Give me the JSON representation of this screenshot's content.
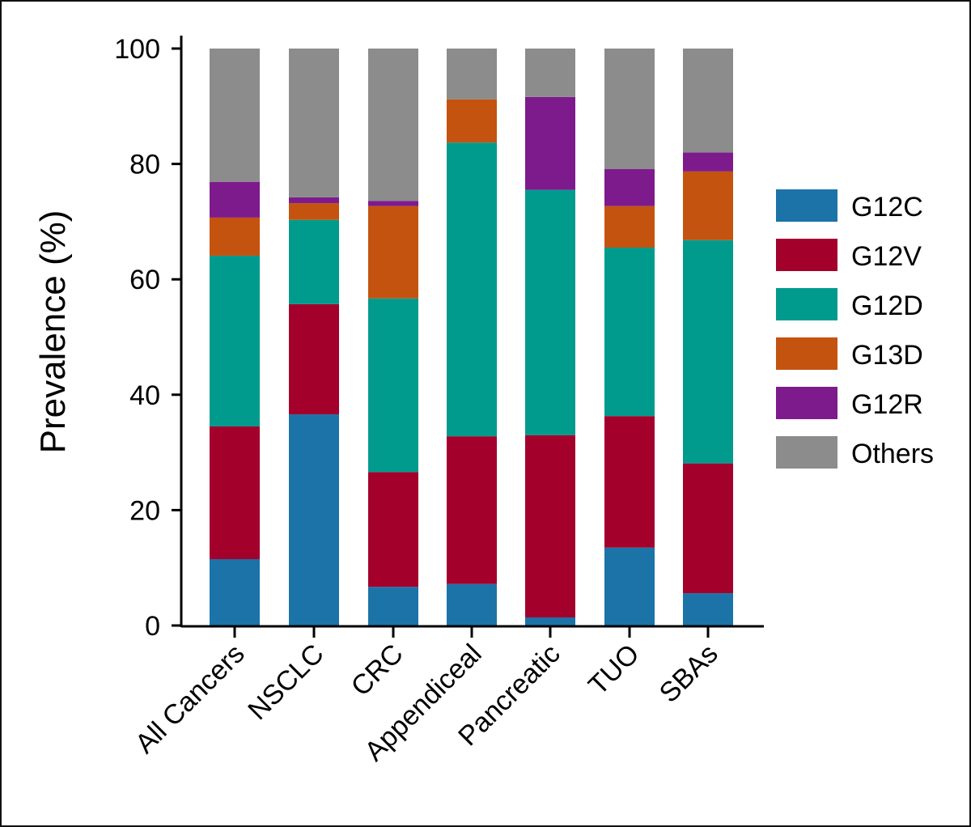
{
  "chart_data": {
    "type": "bar",
    "stacked": true,
    "title": "",
    "xlabel": "",
    "ylabel": "Prevalence (%)",
    "ylim": [
      0,
      100
    ],
    "yticks": [
      0,
      20,
      40,
      60,
      80,
      100
    ],
    "grid": false,
    "legend_position": "right",
    "categories": [
      "All Cancers",
      "NSCLC",
      "CRC",
      "Appendiceal",
      "Pancreatic",
      "TUO",
      "SBAs"
    ],
    "series": [
      {
        "name": "G12C",
        "color": "#1b73a8",
        "values": [
          11.5,
          36.6,
          6.7,
          7.2,
          1.4,
          13.5,
          5.6
        ]
      },
      {
        "name": "G12V",
        "color": "#a3002c",
        "values": [
          23.0,
          19.1,
          19.9,
          25.6,
          31.6,
          22.8,
          22.5
        ]
      },
      {
        "name": "G12D",
        "color": "#009b8d",
        "values": [
          29.6,
          14.6,
          30.1,
          50.9,
          42.5,
          29.2,
          38.7
        ]
      },
      {
        "name": "G13D",
        "color": "#c4530f",
        "values": [
          6.6,
          2.9,
          16.0,
          7.5,
          0.0,
          7.2,
          11.9
        ]
      },
      {
        "name": "G12R",
        "color": "#7d1b8c",
        "values": [
          6.2,
          1.0,
          0.9,
          0.0,
          16.1,
          6.4,
          3.3
        ]
      },
      {
        "name": "Others",
        "color": "#8c8c8c",
        "values": [
          23.1,
          25.8,
          26.4,
          8.8,
          8.4,
          20.9,
          18.0
        ]
      }
    ]
  }
}
